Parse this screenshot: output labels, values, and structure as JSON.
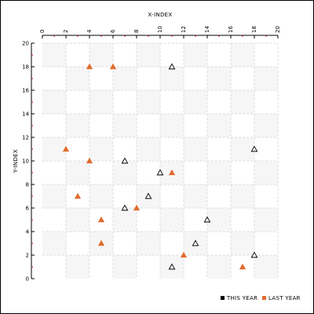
{
  "chart_data": {
    "type": "scatter",
    "title": "",
    "xlabel": "X-INDEX",
    "ylabel": "Y-INDEX",
    "xlim": [
      0,
      20
    ],
    "ylim": [
      0,
      20
    ],
    "x_ticks": [
      0,
      2,
      4,
      6,
      8,
      10,
      12,
      14,
      16,
      18,
      20
    ],
    "y_ticks": [
      0,
      2,
      4,
      6,
      8,
      10,
      12,
      14,
      16,
      18,
      20
    ],
    "x_axis_position": "top",
    "grid": true,
    "legend_position": "bottom-right",
    "series": [
      {
        "name": "THIS YEAR",
        "marker": "hollow-triangle",
        "color": "#000000",
        "points": [
          {
            "x": 11,
            "y": 18
          },
          {
            "x": 18,
            "y": 11
          },
          {
            "x": 7,
            "y": 10
          },
          {
            "x": 10,
            "y": 9
          },
          {
            "x": 9,
            "y": 7
          },
          {
            "x": 7,
            "y": 6
          },
          {
            "x": 14,
            "y": 5
          },
          {
            "x": 13,
            "y": 3
          },
          {
            "x": 18,
            "y": 2
          },
          {
            "x": 11,
            "y": 1
          }
        ]
      },
      {
        "name": "LAST YEAR",
        "marker": "filled-triangle",
        "color": "#e06a2c",
        "points": [
          {
            "x": 4,
            "y": 18
          },
          {
            "x": 6,
            "y": 18
          },
          {
            "x": 2,
            "y": 11
          },
          {
            "x": 4,
            "y": 10
          },
          {
            "x": 11,
            "y": 9
          },
          {
            "x": 3,
            "y": 7
          },
          {
            "x": 8,
            "y": 6
          },
          {
            "x": 5,
            "y": 5
          },
          {
            "x": 5,
            "y": 3
          },
          {
            "x": 12,
            "y": 2
          },
          {
            "x": 17,
            "y": 1
          }
        ]
      }
    ]
  },
  "colors": {
    "grid": "#dddddd",
    "band": "#f6f6f6",
    "axis": "#000000",
    "minor_tick": "#cc0000"
  }
}
